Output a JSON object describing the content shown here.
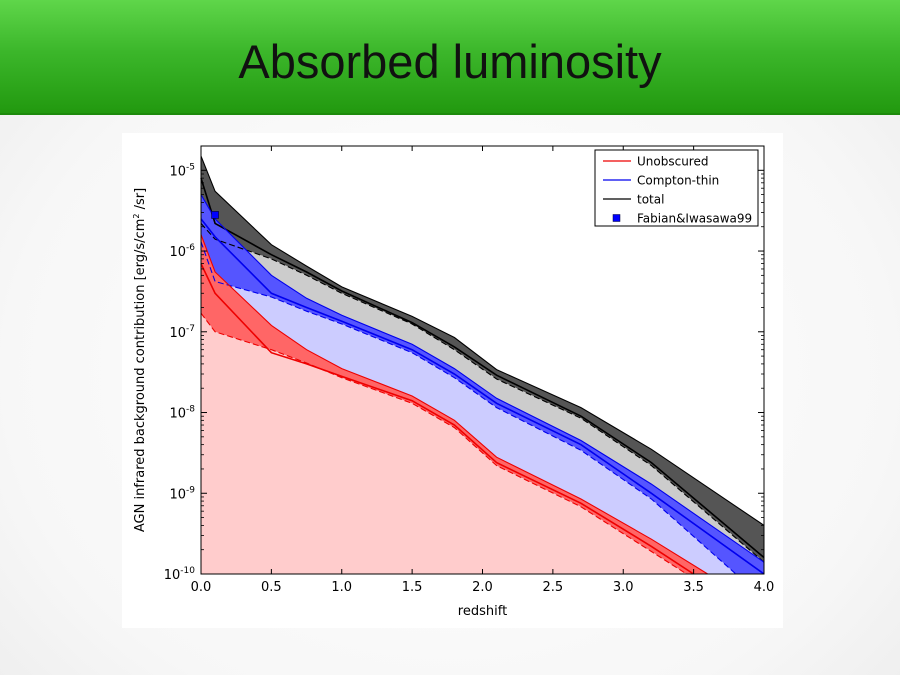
{
  "slide": {
    "title": "Absorbed luminosity"
  },
  "chart_data": {
    "type": "area",
    "title": "",
    "xlabel": "redshift",
    "ylabel": "AGN infrared background contribution [erg/s/cm",
    "ylabel_sup": "2",
    "ylabel_tail": " /sr]",
    "xlim": [
      0.0,
      4.0
    ],
    "ylim": [
      1e-10,
      2e-05
    ],
    "yscale": "log",
    "grid": false,
    "legend_position": "top-right",
    "x_ticks": [
      "0.0",
      "0.5",
      "1.0",
      "1.5",
      "2.0",
      "2.5",
      "3.0",
      "3.5",
      "4.0"
    ],
    "y_ticks": [
      {
        "value": 1e-10,
        "base": "10",
        "exp": "-10"
      },
      {
        "value": 1e-09,
        "base": "10",
        "exp": "-9"
      },
      {
        "value": 1e-08,
        "base": "10",
        "exp": "-8"
      },
      {
        "value": 1e-07,
        "base": "10",
        "exp": "-7"
      },
      {
        "value": 1e-06,
        "base": "10",
        "exp": "-6"
      },
      {
        "value": 1e-05,
        "base": "10",
        "exp": "-5"
      }
    ],
    "bands": [
      {
        "name": "total",
        "line_color": "#000000",
        "dark_fill": "#555555",
        "light_fill": "#cccccc",
        "upper": [
          [
            0.0,
            1.5e-05
          ],
          [
            0.1,
            5.5e-06
          ],
          [
            0.5,
            1.2e-06
          ],
          [
            0.75,
            6.5e-07
          ],
          [
            1.0,
            3.6e-07
          ],
          [
            1.5,
            1.55e-07
          ],
          [
            1.8,
            8.5e-08
          ],
          [
            2.1,
            3.4e-08
          ],
          [
            2.7,
            1.15e-08
          ],
          [
            3.2,
            3.5e-09
          ],
          [
            4.0,
            4e-10
          ]
        ],
        "mid": [
          [
            0.0,
            8e-06
          ],
          [
            0.1,
            2.2e-06
          ],
          [
            0.5,
            9e-07
          ],
          [
            0.75,
            5.5e-07
          ],
          [
            1.0,
            3.2e-07
          ],
          [
            1.5,
            1.3e-07
          ],
          [
            1.8,
            6.5e-08
          ],
          [
            2.1,
            2.9e-08
          ],
          [
            2.7,
            9e-09
          ],
          [
            3.2,
            2.4e-09
          ],
          [
            4.0,
            1.6e-10
          ]
        ],
        "lower": [
          [
            0.0,
            2.2e-06
          ],
          [
            0.1,
            1.4e-06
          ],
          [
            0.5,
            8e-07
          ],
          [
            0.75,
            5e-07
          ],
          [
            1.0,
            3e-07
          ],
          [
            1.5,
            1.25e-07
          ],
          [
            1.8,
            6e-08
          ],
          [
            2.1,
            2.6e-08
          ],
          [
            2.7,
            8.5e-09
          ],
          [
            3.2,
            2.2e-09
          ],
          [
            4.0,
            1.4e-10
          ]
        ]
      },
      {
        "name": "Compton-thin",
        "line_color": "#0000ee",
        "dark_fill": "#5555ff",
        "light_fill": "#ccccff",
        "upper": [
          [
            0.0,
            5e-06
          ],
          [
            0.1,
            2.5e-06
          ],
          [
            0.5,
            5e-07
          ],
          [
            0.75,
            2.6e-07
          ],
          [
            1.0,
            1.6e-07
          ],
          [
            1.5,
            7e-08
          ],
          [
            1.8,
            3.5e-08
          ],
          [
            2.1,
            1.5e-08
          ],
          [
            2.7,
            4.5e-09
          ],
          [
            3.2,
            1.3e-09
          ],
          [
            4.0,
            1.4e-10
          ]
        ],
        "mid": [
          [
            0.0,
            2.5e-06
          ],
          [
            0.1,
            1.5e-06
          ],
          [
            0.5,
            3e-07
          ],
          [
            0.75,
            2e-07
          ],
          [
            1.0,
            1.35e-07
          ],
          [
            1.5,
            6e-08
          ],
          [
            1.8,
            3e-08
          ],
          [
            2.1,
            1.3e-08
          ],
          [
            2.7,
            4e-09
          ],
          [
            3.2,
            1e-09
          ],
          [
            4.0,
            1e-10
          ]
        ],
        "lower": [
          [
            0.0,
            1.3e-06
          ],
          [
            0.1,
            4.2e-07
          ],
          [
            0.5,
            2.7e-07
          ],
          [
            0.75,
            1.8e-07
          ],
          [
            1.0,
            1.25e-07
          ],
          [
            1.5,
            5.5e-08
          ],
          [
            1.8,
            2.7e-08
          ],
          [
            2.1,
            1.15e-08
          ],
          [
            2.7,
            3.4e-09
          ],
          [
            3.2,
            8.5e-10
          ],
          [
            3.8,
            1e-10
          ]
        ]
      },
      {
        "name": "Unobscured",
        "line_color": "#ee0000",
        "dark_fill": "#ff6666",
        "light_fill": "#ffcccc",
        "upper": [
          [
            0.0,
            1.6e-06
          ],
          [
            0.1,
            5.5e-07
          ],
          [
            0.5,
            1.2e-07
          ],
          [
            0.75,
            6e-08
          ],
          [
            1.0,
            3.5e-08
          ],
          [
            1.5,
            1.6e-08
          ],
          [
            1.8,
            8e-09
          ],
          [
            2.1,
            2.8e-09
          ],
          [
            2.7,
            8.5e-10
          ],
          [
            3.2,
            2.7e-10
          ],
          [
            3.6,
            1e-10
          ]
        ],
        "mid": [
          [
            0.0,
            7e-07
          ],
          [
            0.1,
            3e-07
          ],
          [
            0.5,
            5.5e-08
          ],
          [
            0.75,
            4e-08
          ],
          [
            1.0,
            2.8e-08
          ],
          [
            1.5,
            1.4e-08
          ],
          [
            1.8,
            7e-09
          ],
          [
            2.1,
            2.4e-09
          ],
          [
            2.7,
            7.5e-10
          ],
          [
            3.2,
            2.2e-10
          ],
          [
            3.5,
            1e-10
          ]
        ],
        "lower": [
          [
            0.0,
            1.7e-07
          ],
          [
            0.1,
            1e-07
          ],
          [
            0.5,
            6e-08
          ],
          [
            0.75,
            4.1e-08
          ],
          [
            1.0,
            2.7e-08
          ],
          [
            1.5,
            1.3e-08
          ],
          [
            1.8,
            6.5e-09
          ],
          [
            2.1,
            2.2e-09
          ],
          [
            2.7,
            6.8e-10
          ],
          [
            3.2,
            1.9e-10
          ],
          [
            3.45,
            1e-10
          ]
        ]
      }
    ],
    "points": [
      {
        "name": "Fabian&Iwasawa99",
        "x": 0.1,
        "y": 2.8e-06,
        "color": "#0000ff",
        "marker": "square"
      }
    ],
    "legend": [
      {
        "label": "Unobscured",
        "kind": "line",
        "color": "#ee0000"
      },
      {
        "label": "Compton-thin",
        "kind": "line",
        "color": "#0000ee"
      },
      {
        "label": "total",
        "kind": "line",
        "color": "#000000"
      },
      {
        "label": "Fabian&Iwasawa99",
        "kind": "marker",
        "color": "#0000ff"
      }
    ]
  }
}
